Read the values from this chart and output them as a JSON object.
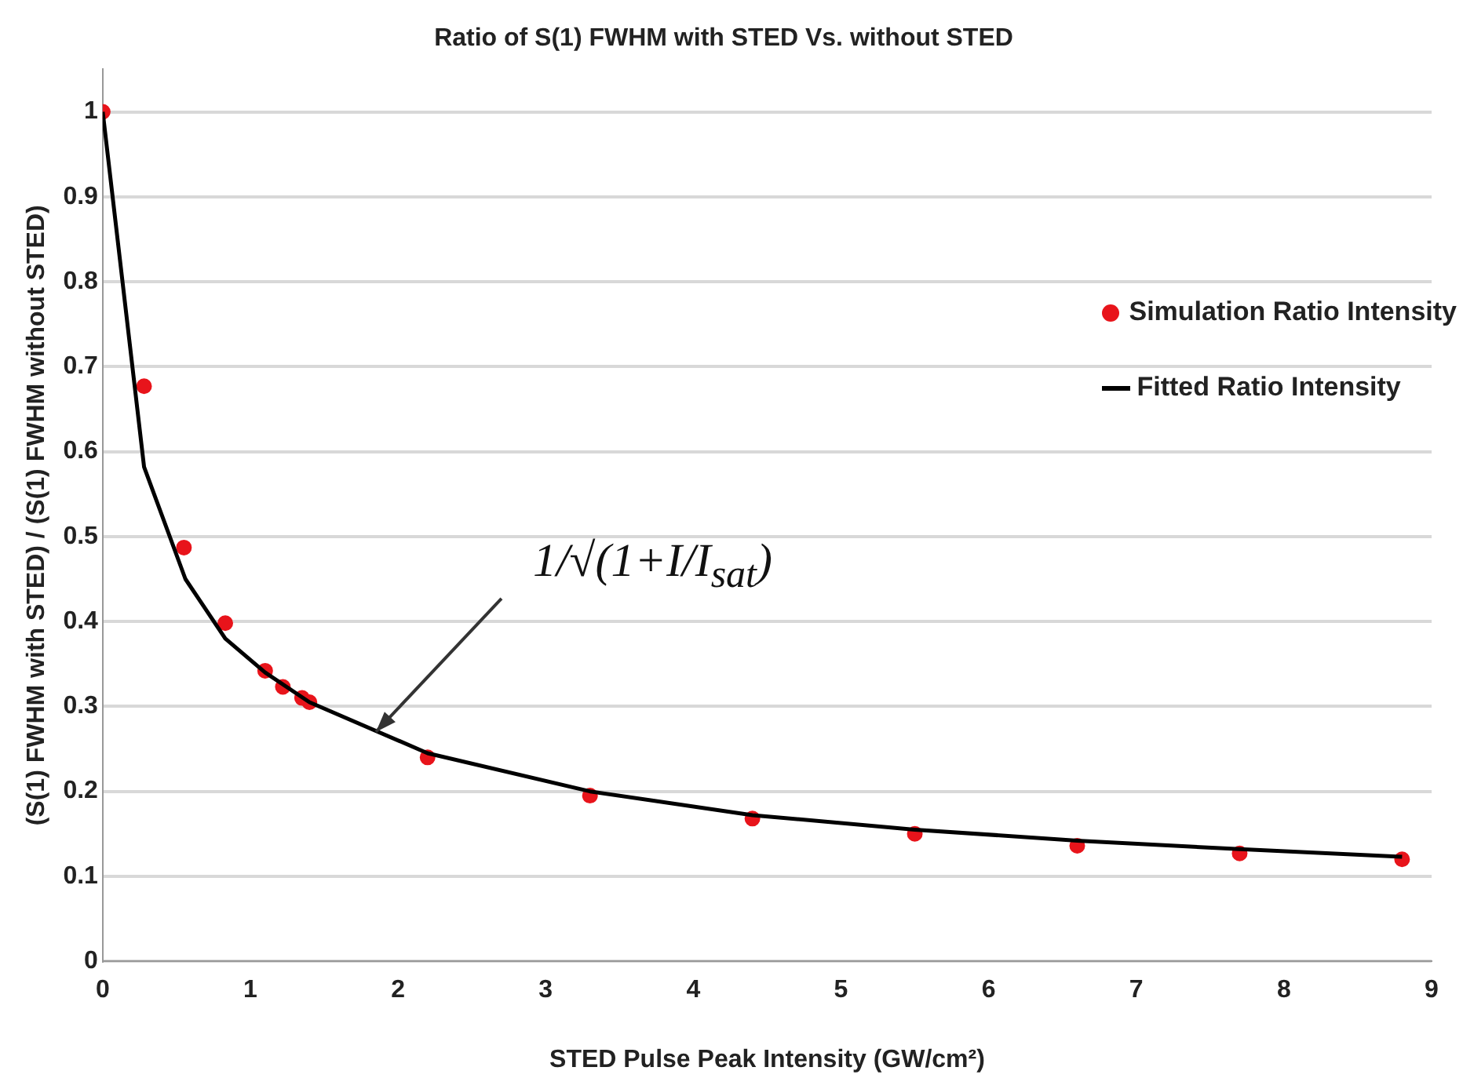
{
  "chart_data": {
    "type": "scatter",
    "title": "Ratio of S(1) FWHM with STED Vs. without STED",
    "xlabel": "STED Pulse Peak Intensity (GW/cm²)",
    "ylabel": "(S(1) FWHM with STED) / (S(1) FWHM without STED)",
    "xlim": [
      0,
      9
    ],
    "xticks": [
      0,
      1,
      2,
      3,
      4,
      5,
      6,
      7,
      8,
      9
    ],
    "ylim": [
      0,
      1.05
    ],
    "yticks": [
      0,
      0.1,
      0.2,
      0.3,
      0.4,
      0.5,
      0.6,
      0.7,
      0.8,
      0.9,
      1
    ],
    "grid": "y",
    "legend": "right",
    "series": [
      {
        "name": "Simulation Ratio Intensity",
        "color": "#e8141b",
        "marker": "circle",
        "x": [
          0,
          0.28,
          0.55,
          0.83,
          1.1,
          1.22,
          1.35,
          1.4,
          2.2,
          3.3,
          4.4,
          5.5,
          6.6,
          7.7,
          8.8
        ],
        "values": [
          1,
          0.677,
          0.487,
          0.398,
          0.342,
          0.323,
          0.31,
          0.305,
          0.24,
          0.195,
          0.168,
          0.15,
          0.136,
          0.127,
          0.12
        ]
      },
      {
        "name": "Fitted Ratio Intensity",
        "color": "#000000",
        "type": "line",
        "marker": "none",
        "x": [
          0,
          0.28,
          0.56,
          0.83,
          1.1,
          1.4,
          2.2,
          3.3,
          4.4,
          5.5,
          6.6,
          7.7,
          8.8
        ],
        "values": [
          1,
          0.582,
          0.45,
          0.38,
          0.34,
          0.305,
          0.245,
          0.2,
          0.172,
          0.155,
          0.142,
          0.132,
          0.123
        ]
      }
    ],
    "annotations": [
      {
        "text": "1/√(1+I/I$_{sat}$)",
        "x": 1.85,
        "y": 0.27
      }
    ]
  }
}
